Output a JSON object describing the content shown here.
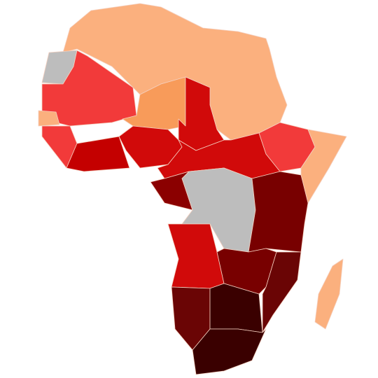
{
  "map": {
    "fills": [
      "#fbb07e",
      "#bdbdbd",
      "#f23a3a",
      "#f89b5a",
      "#d10a0a",
      "#c40000",
      "#8b0000",
      "#780000",
      "#6a0505",
      "#3a0000"
    ]
  }
}
